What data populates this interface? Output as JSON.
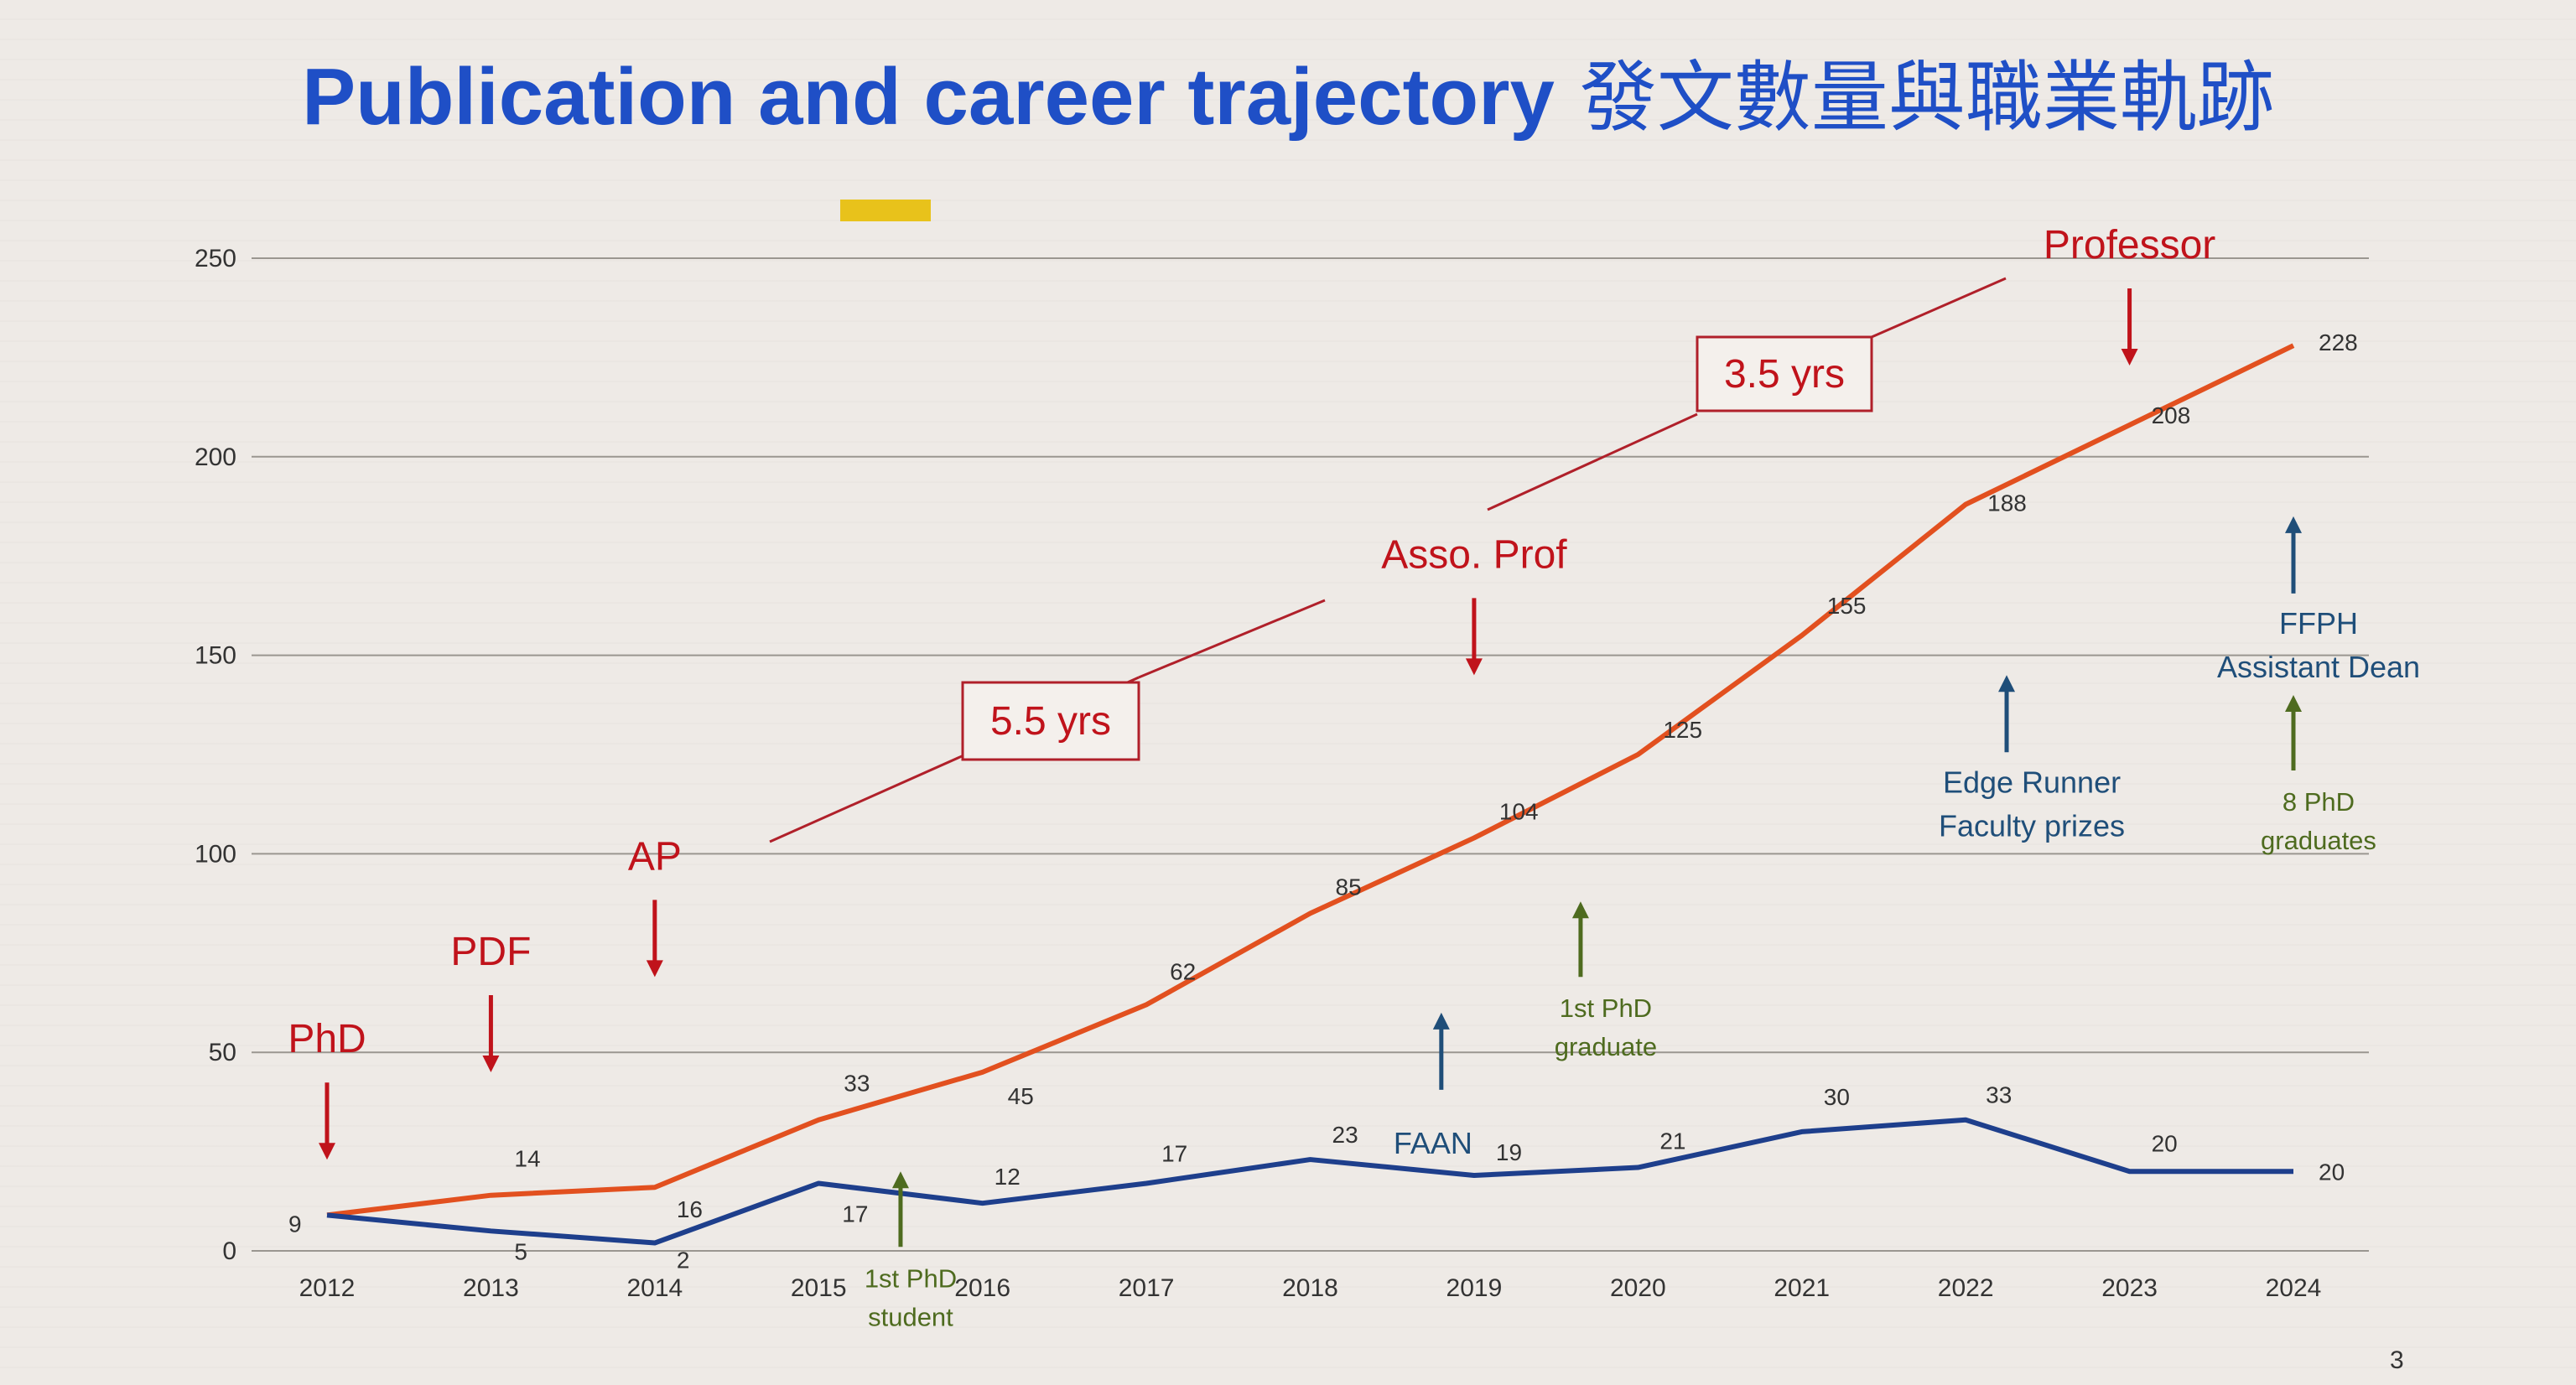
{
  "slide": {
    "page_number": "3",
    "colors": {
      "title": "#1f4fc6",
      "publications_line": "#e2501f",
      "phd_line": "#1e3f8c",
      "annotation_red": "#c0131b",
      "annotation_blue": "#1f4e79",
      "annotation_green": "#4e6b1f",
      "highlight": "#e8c21b"
    }
  },
  "chart_data": {
    "type": "line",
    "title": "Publication and career trajectory 發文數量與職業軌跡",
    "title_en": "Publication and career trajectory",
    "title_zh": "發文數量與職業軌跡",
    "xlabel": "",
    "ylabel": "",
    "ylim": [
      0,
      250
    ],
    "yticks": [
      "0",
      "50",
      "100",
      "150",
      "200",
      "250"
    ],
    "categories": [
      "2012",
      "2013",
      "2014",
      "2015",
      "2016",
      "2017",
      "2018",
      "2019",
      "2020",
      "2021",
      "2022",
      "2023",
      "2024"
    ],
    "grid": true,
    "series": [
      {
        "color": "#e2501f",
        "values": [
          9,
          14,
          16,
          33,
          45,
          62,
          85,
          104,
          125,
          155,
          188,
          208,
          228
        ]
      },
      {
        "color": "#1e3f8c",
        "values": [
          9,
          5,
          2,
          17,
          12,
          17,
          23,
          19,
          21,
          30,
          33,
          20,
          20
        ]
      }
    ],
    "annotations": [
      {
        "id": "phd",
        "text": "PhD",
        "year": 2012,
        "value": 50,
        "arrow": "down",
        "color": "red"
      },
      {
        "id": "pdf",
        "text": "PDF",
        "year": 2013,
        "value": 72,
        "arrow": "down",
        "color": "red"
      },
      {
        "id": "ap",
        "text": "AP",
        "year": 2014,
        "value": 96,
        "arrow": "down",
        "color": "red"
      },
      {
        "id": "asso_prof",
        "text": "Asso. Prof",
        "year": 2019,
        "value": 172,
        "arrow": "down",
        "color": "red"
      },
      {
        "id": "professor",
        "text": "Professor",
        "year": 2023,
        "value": 250,
        "arrow": "down",
        "color": "red"
      },
      {
        "id": "gap_1",
        "text": "5.5 yrs",
        "boxed": true
      },
      {
        "id": "gap_2",
        "text": "3.5 yrs",
        "boxed": true
      },
      {
        "id": "faan",
        "text": "FAAN",
        "year": 2018.8,
        "value": 60,
        "arrow": "up",
        "color": "blue"
      },
      {
        "id": "edge_runner",
        "lines": [
          "Edge Runner",
          "Faculty prizes"
        ],
        "year": 2022.25,
        "value": 145,
        "arrow": "up",
        "color": "blue"
      },
      {
        "id": "ffph",
        "lines": [
          "FFPH",
          "Assistant Dean"
        ],
        "year": 2024,
        "value": 185,
        "arrow": "up",
        "color": "blue"
      },
      {
        "id": "first_phd_student",
        "lines": [
          "1st PhD",
          "student"
        ],
        "year": 2015.5,
        "value": 20,
        "arrow": "up",
        "color": "green"
      },
      {
        "id": "first_phd_graduate",
        "lines": [
          "1st PhD",
          "graduate"
        ],
        "year": 2019.65,
        "value": 88,
        "arrow": "up",
        "color": "green"
      },
      {
        "id": "eight_phd_graduates",
        "lines": [
          "8 PhD",
          "graduates"
        ],
        "year": 2024,
        "value": 140,
        "arrow": "up",
        "color": "green"
      }
    ]
  }
}
